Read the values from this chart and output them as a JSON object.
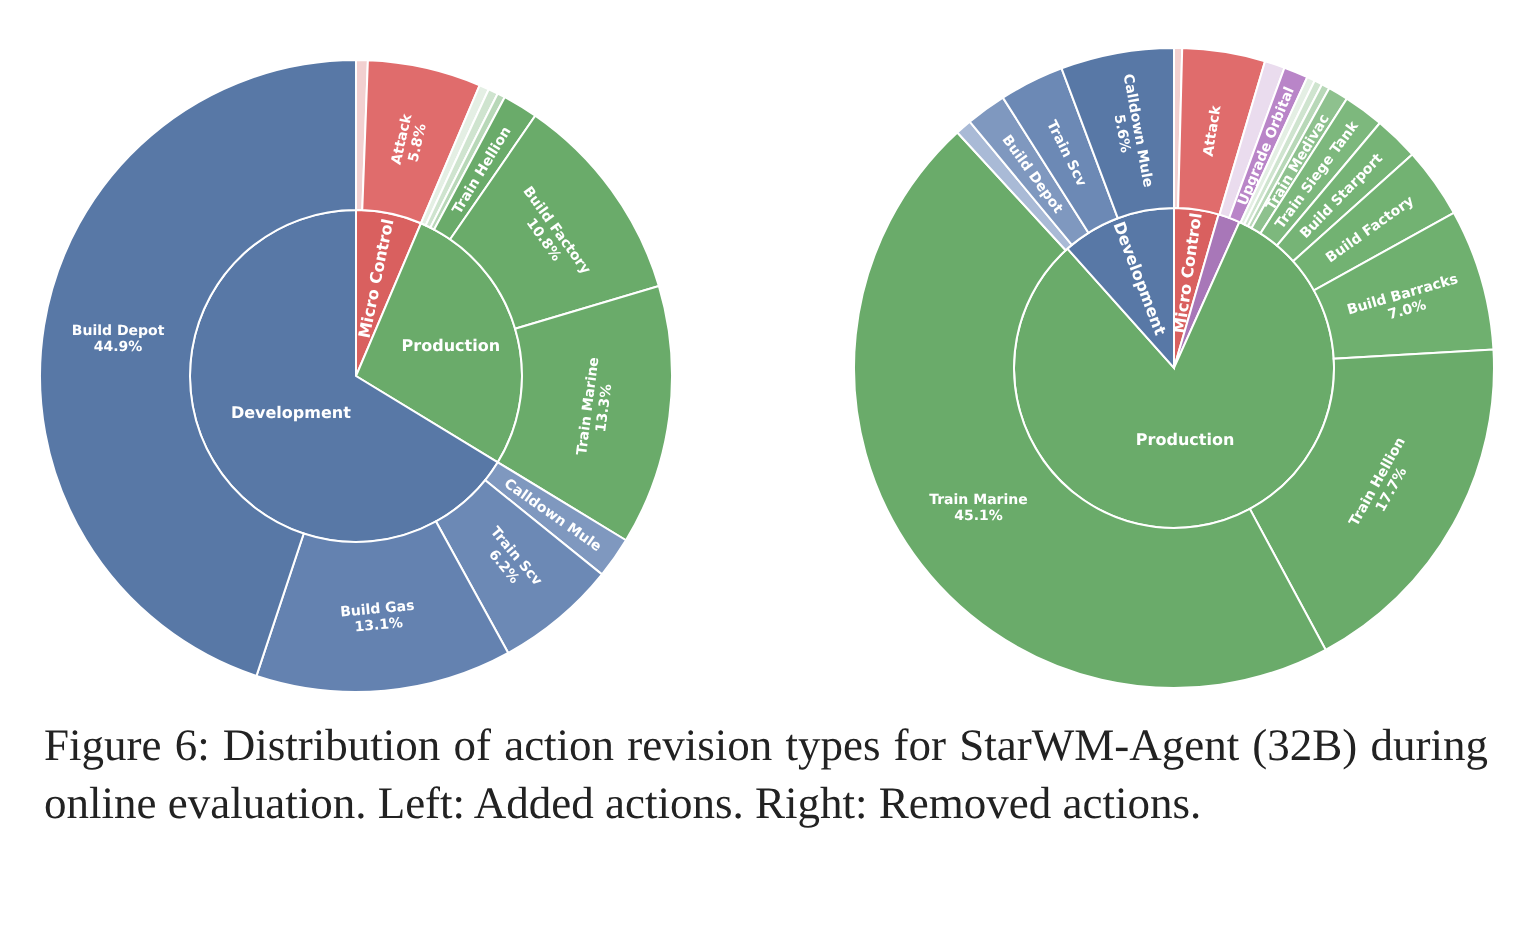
{
  "chart_data": [
    {
      "type": "pie",
      "annotations": [
        "Figure 6: Distribution of action revision types for StarWM-Agent (32B) during online evaluation. Left: Added actions. Right: Removed actions."
      ],
      "categories": [
        "Micro Control",
        "Production",
        "Development"
      ],
      "values": [
        6.4,
        27.3,
        66.3
      ],
      "colors": [
        "#d9605f",
        "#6aab6a",
        "#5878a6"
      ]
    },
    {
      "type": "donut",
      "categories": [
        null,
        "Attack",
        null,
        null,
        null,
        "Train Hellion",
        "Build Factory",
        "Train Marine",
        "Calldown Mule",
        "Train Scv",
        "Build Gas",
        "Build Depot"
      ],
      "values": [
        0.6,
        5.8,
        0.5,
        0.5,
        0.4,
        1.8,
        10.8,
        13.3,
        2.1,
        6.2,
        13.1,
        44.9
      ],
      "value_labels": [
        null,
        "5.8%",
        null,
        null,
        null,
        null,
        "10.8%",
        "13.3%",
        null,
        "6.2%",
        "13.1%",
        "44.9%"
      ],
      "colors": [
        "#f2d0d0",
        "#e06c6c",
        "#e4efe4",
        "#cfe4cf",
        "#b8d8b8",
        "#6aab6a",
        "#6aab6a",
        "#6aab6a",
        "#7f98bf",
        "#6c89b5",
        "#6482b0",
        "#5878a6"
      ]
    },
    {
      "type": "pie",
      "categories": [
        "Micro Control",
        null,
        "Production",
        "Development"
      ],
      "values": [
        4.5,
        2.2,
        81.7,
        11.6
      ],
      "colors": [
        "#d9605f",
        "#a877b8",
        "#6aab6a",
        "#5878a6"
      ]
    },
    {
      "type": "donut",
      "categories": [
        null,
        "Attack",
        null,
        "Upgrade Orbital",
        null,
        null,
        null,
        "Train Medivac",
        "Train Siege Tank",
        "Build Starport",
        "Build Factory",
        "Build Barracks",
        "Train Hellion",
        "Train Marine",
        null,
        "Build Depot",
        "Train Scv",
        "Calldown Mule"
      ],
      "values": [
        0.4,
        4.1,
        1.0,
        1.2,
        0.4,
        0.4,
        0.4,
        1.0,
        2.0,
        2.2,
        3.5,
        7.0,
        17.7,
        45.1,
        0.8,
        2.0,
        3.2,
        5.6
      ],
      "value_labels": [
        null,
        null,
        null,
        null,
        null,
        null,
        null,
        null,
        null,
        null,
        null,
        "7.0%",
        "17.7%",
        "45.1%",
        null,
        null,
        null,
        "5.6%"
      ],
      "colors": [
        "#f2d0d0",
        "#e06c6c",
        "#eadcee",
        "#b985c8",
        "#e4efe4",
        "#cfe4cf",
        "#b8d8b8",
        "#8ec18e",
        "#7db87d",
        "#76b476",
        "#72b272",
        "#6fb06f",
        "#6aab6a",
        "#6aab6a",
        "#a9bad6",
        "#7f98bf",
        "#6c89b5",
        "#5878a6"
      ]
    }
  ]
}
